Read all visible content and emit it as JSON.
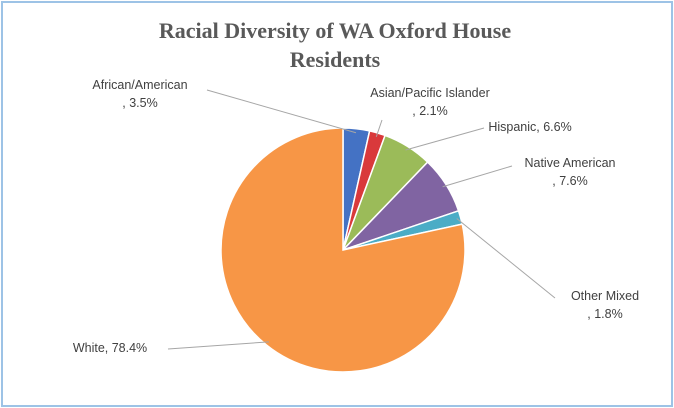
{
  "chart_data": {
    "type": "pie",
    "title": "Racial Diversity of WA Oxford House Residents",
    "categories": [
      "African/American",
      "Asian/Pacific Islander",
      "Hispanic",
      "Native American",
      "Other Mixed",
      "White"
    ],
    "values": [
      3.5,
      2.1,
      6.6,
      7.6,
      1.8,
      78.4
    ],
    "value_labels": [
      ", 3.5%",
      ", 2.1%",
      ", 6.6%",
      ", 7.6%",
      ", 1.8%",
      ", 78.4%"
    ],
    "colors": [
      "#4472c4",
      "#d9393b",
      "#9bbb59",
      "#8064a2",
      "#4bacc6",
      "#f79646"
    ]
  }
}
